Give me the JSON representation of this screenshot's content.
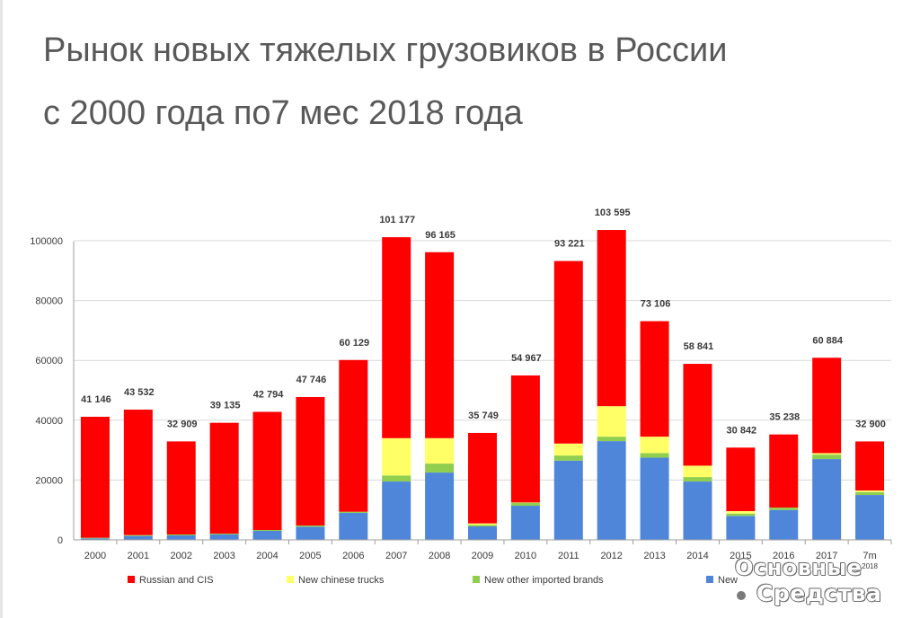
{
  "title_lines": [
    "Рынок новых тяжелых грузовиков в России",
    "с 2000 года по7 мес 2018 года"
  ],
  "watermark": {
    "line1": "Основные",
    "line2": "Средства"
  },
  "colors": {
    "russian": "#ff0000",
    "chinese": "#ffff66",
    "other": "#8fce4f",
    "used": "#4f86d9",
    "axis": "#9c9c9c",
    "grid": "#d9d9d9",
    "text": "#3a3a3a"
  },
  "chart_data": {
    "type": "bar",
    "stacked": true,
    "categories": [
      "2000",
      "2001",
      "2002",
      "2003",
      "2004",
      "2005",
      "2006",
      "2007",
      "2008",
      "2009",
      "2010",
      "2011",
      "2012",
      "2013",
      "2014",
      "2015",
      "2016",
      "2017",
      "7m 2018"
    ],
    "total_labels": [
      "41 146",
      "43 532",
      "32 909",
      "39 135",
      "42 794",
      "47 746",
      "60 129",
      "101 177",
      "96 165",
      "35 749",
      "54 967",
      "93 221",
      "103 595",
      "73 106",
      "58 841",
      "30 842",
      "35 238",
      "60 884",
      "32 900"
    ],
    "totals": [
      41146,
      43532,
      32909,
      39135,
      42794,
      47746,
      60129,
      101177,
      96165,
      35749,
      54967,
      93221,
      103595,
      73106,
      58841,
      30842,
      35238,
      60884,
      32900
    ],
    "series": [
      {
        "name": "New used trucks",
        "color_key": "used",
        "values": [
          500,
          1300,
          1500,
          1800,
          3000,
          4400,
          9000,
          19500,
          22500,
          4500,
          11400,
          26500,
          33000,
          27500,
          19500,
          8000,
          10000,
          27000,
          15000
        ]
      },
      {
        "name": "New other imported brands",
        "color_key": "other",
        "values": [
          200,
          300,
          300,
          300,
          300,
          400,
          400,
          2000,
          3000,
          500,
          1000,
          1700,
          1500,
          1500,
          1500,
          800,
          800,
          1500,
          1000
        ]
      },
      {
        "name": "New chinese trucks",
        "color_key": "chinese",
        "values": [
          0,
          0,
          0,
          0,
          0,
          0,
          0,
          12500,
          8500,
          500,
          100,
          4000,
          10200,
          5500,
          3800,
          800,
          0,
          500,
          500
        ]
      },
      {
        "name": "Russian and CIS",
        "color_key": "russian",
        "values": [
          40446,
          41932,
          31109,
          37035,
          39494,
          42946,
          50729,
          67177,
          62165,
          30249,
          42467,
          61021,
          58895,
          38606,
          34041,
          21242,
          24438,
          31884,
          16400
        ]
      }
    ],
    "legend_labels": [
      "Russian and CIS",
      "New chinese trucks",
      "New other imported brands",
      "New used trucks"
    ],
    "legend_visible_text": [
      "Russian and CIS",
      "New chinese trucks",
      "New other imported brands",
      "New"
    ],
    "yticks": [
      0,
      20000,
      40000,
      60000,
      80000,
      100000
    ],
    "ylim": [
      0,
      110000
    ],
    "grid": true,
    "legend_position": "bottom"
  }
}
